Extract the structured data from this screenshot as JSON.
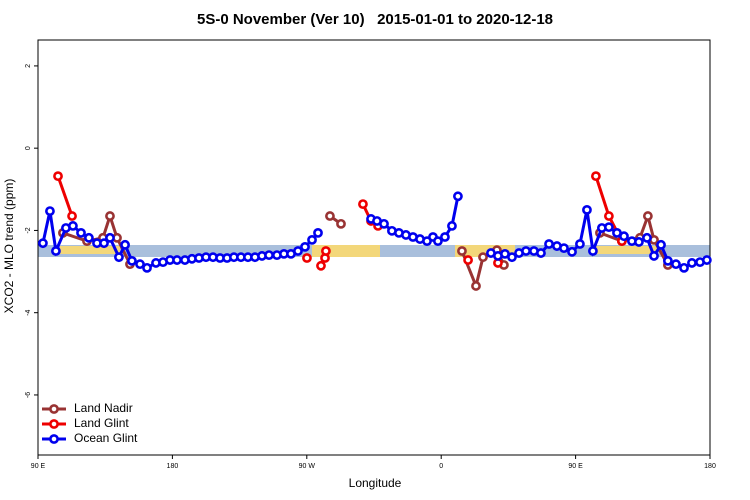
{
  "chart_data": {
    "type": "line",
    "title": "5S-0 November (Ver 10)   2015-01-01 to 2020-12-18",
    "xlabel": "Longitude",
    "ylabel": "XCO2 - MLO trend (ppm)",
    "xlim": [
      90,
      540
    ],
    "xticks": [
      {
        "value": 90,
        "label": "90 E"
      },
      180,
      {
        "value": 270,
        "label": "90 W"
      },
      {
        "value": 360,
        "label": "0"
      },
      {
        "value": 450,
        "label": "90 E"
      },
      {
        "value": 540,
        "label": "180"
      }
    ],
    "ylim": [
      -7.46,
      2.63
    ],
    "yticks": [
      -6,
      -4,
      -2,
      0,
      2
    ],
    "legend": "bottom-left",
    "series": [
      {
        "name": "Land Nadir",
        "color": "#993333",
        "x": [
          106.7,
          122.8,
          133.5,
          138.2,
          142.9,
          151.6,
          null,
          285.5,
          292.9,
          null,
          373.9,
          383.3,
          388.0,
          397.3,
          402.0,
          null,
          466.3,
          481.0,
          493.1,
          498.4,
          502.5,
          511.8
        ],
        "values": [
          -2.06,
          -2.26,
          -2.18,
          -1.65,
          -2.18,
          -2.82,
          null,
          -1.65,
          -1.84,
          null,
          -2.5,
          -3.35,
          -2.65,
          -2.48,
          -2.84,
          null,
          -2.06,
          -2.26,
          -2.18,
          -1.65,
          -2.23,
          -2.84
        ]
      },
      {
        "name": "Land Glint",
        "color": "#ee0000",
        "x": [
          103.4,
          112.8,
          null,
          270.1,
          null,
          279.5,
          282.2,
          282.8,
          null,
          307.6,
          313.0,
          317.7,
          null,
          378.0,
          null,
          398.0,
          null,
          463.6,
          472.3,
          481.0
        ],
        "values": [
          -0.68,
          -1.65,
          null,
          -2.67,
          null,
          -2.86,
          -2.67,
          -2.5,
          null,
          -1.36,
          -1.77,
          -1.89,
          null,
          -2.72,
          null,
          -2.79,
          null,
          -0.68,
          -1.65,
          -2.26
        ]
      },
      {
        "name": "Ocean Glint",
        "color": "#0000ee",
        "x": [
          93.3,
          98.0,
          102.0,
          108.7,
          113.4,
          118.8,
          124.1,
          129.5,
          134.2,
          138.2,
          144.2,
          148.3,
          152.9,
          158.3,
          163.0,
          169.0,
          173.7,
          178.4,
          183.1,
          188.4,
          193.1,
          197.8,
          202.5,
          207.2,
          211.9,
          216.6,
          221.2,
          225.9,
          230.6,
          235.3,
          240.0,
          244.7,
          250.0,
          254.7,
          259.4,
          264.1,
          268.8,
          273.5,
          277.5,
          null,
          313.0,
          317.0,
          321.7,
          327.0,
          331.7,
          336.4,
          341.1,
          345.8,
          350.5,
          354.5,
          357.8,
          362.5,
          367.2,
          371.2,
          null,
          393.3,
          398.0,
          402.7,
          407.4,
          412.1,
          416.8,
          422.1,
          426.8,
          432.2,
          437.5,
          442.2,
          447.6,
          452.9,
          457.6,
          461.6,
          467.6,
          472.3,
          477.7,
          482.4,
          487.7,
          492.4,
          497.8,
          502.5,
          507.2,
          511.8,
          517.2,
          522.6,
          527.9,
          533.3,
          537.9
        ],
        "values": [
          -2.31,
          -1.53,
          -2.5,
          -1.94,
          -1.89,
          -2.06,
          -2.18,
          -2.31,
          -2.31,
          -2.18,
          -2.65,
          -2.35,
          -2.74,
          -2.82,
          -2.91,
          -2.79,
          -2.77,
          -2.72,
          -2.72,
          -2.72,
          -2.69,
          -2.67,
          -2.65,
          -2.65,
          -2.67,
          -2.67,
          -2.65,
          -2.65,
          -2.65,
          -2.65,
          -2.62,
          -2.6,
          -2.6,
          -2.57,
          -2.57,
          -2.5,
          -2.4,
          -2.23,
          -2.06,
          null,
          -1.72,
          -1.77,
          -1.84,
          -2.01,
          -2.06,
          -2.11,
          -2.16,
          -2.21,
          -2.26,
          -2.16,
          -2.26,
          -2.16,
          -1.89,
          -1.17,
          null,
          -2.55,
          -2.62,
          -2.57,
          -2.65,
          -2.55,
          -2.5,
          -2.5,
          -2.55,
          -2.33,
          -2.38,
          -2.43,
          -2.52,
          -2.33,
          -1.5,
          -2.5,
          -1.94,
          -1.92,
          -2.06,
          -2.14,
          -2.26,
          -2.28,
          -2.18,
          -2.62,
          -2.35,
          -2.74,
          -2.82,
          -2.91,
          -2.79,
          -2.77,
          -2.72
        ]
      }
    ]
  }
}
